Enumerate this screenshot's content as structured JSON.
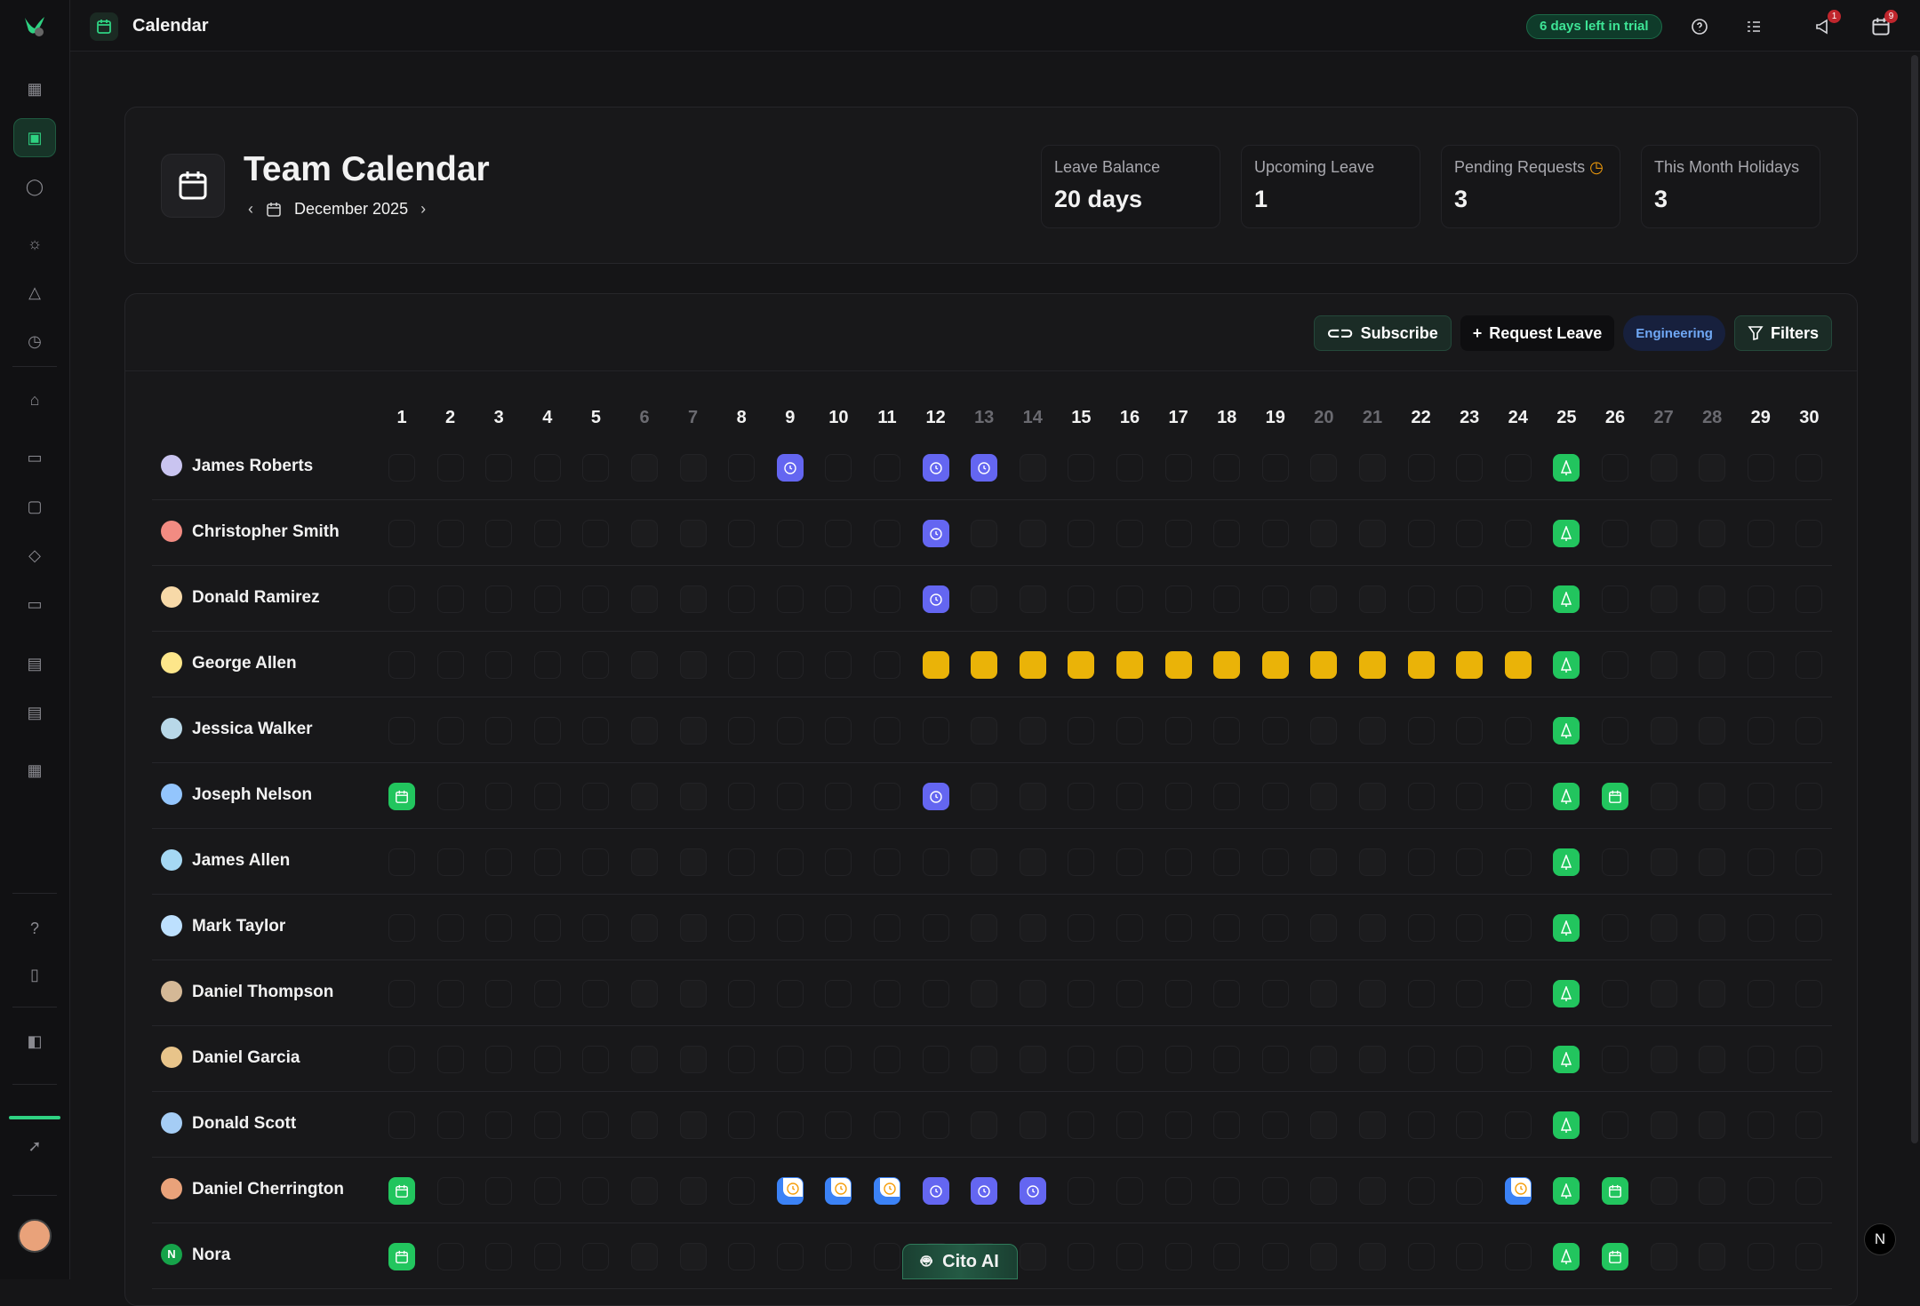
{
  "app": {
    "title": "Calendar",
    "trial": "6 days left in trial",
    "notifications": {
      "announcements": "1",
      "calendar": "9"
    }
  },
  "sidebar": {
    "items": [
      "dashboard-icon",
      "calendar-icon",
      "user-icon",
      "sun-icon",
      "alert-icon",
      "clock-icon",
      "home-icon",
      "briefcase-icon",
      "chat-icon",
      "graduation-icon",
      "monitor-icon",
      "document-icon",
      "receipt-icon",
      "apps-icon"
    ],
    "bottom": [
      "help-icon",
      "book-icon",
      "panel-icon",
      "rocket-icon"
    ],
    "active": "calendar-icon"
  },
  "header": {
    "title": "Team Calendar",
    "month": "December 2025",
    "stats": [
      {
        "label": "Leave Balance",
        "value": "20 days"
      },
      {
        "label": "Upcoming Leave",
        "value": "1"
      },
      {
        "label": "Pending Requests",
        "value": "3"
      },
      {
        "label": "This Month Holidays",
        "value": "3"
      }
    ]
  },
  "toolbar": {
    "subscribe": "Subscribe",
    "request": "Request Leave",
    "department": "Engineering",
    "filters": "Filters"
  },
  "calendar": {
    "days": 30,
    "weekend_days": [
      6,
      7,
      13,
      14,
      20,
      21,
      27,
      28
    ],
    "legend_colors": {
      "pending": "#6466f1",
      "leave": "#eab308",
      "holiday": "#22c55e",
      "event": "#22c55e",
      "half": "#3b82f6"
    },
    "employees": [
      {
        "name": "James Roberts",
        "avatar": "#c9c4f0",
        "cells": {
          "9": "pending",
          "12": "pending",
          "13": "pending",
          "25": "holiday"
        }
      },
      {
        "name": "Christopher Smith",
        "avatar": "#f28b82",
        "cells": {
          "12": "pending",
          "25": "holiday"
        }
      },
      {
        "name": "Donald Ramirez",
        "avatar": "#f7d9a8",
        "cells": {
          "12": "pending",
          "25": "holiday"
        }
      },
      {
        "name": "George Allen",
        "avatar": "#fde68a",
        "cells": {
          "12": "leave",
          "13": "leave",
          "14": "leave",
          "15": "leave",
          "16": "leave",
          "17": "leave",
          "18": "leave",
          "19": "leave",
          "20": "leave",
          "21": "leave",
          "22": "leave",
          "23": "leave",
          "24": "leave",
          "25": "holiday"
        }
      },
      {
        "name": "Jessica Walker",
        "avatar": "#b8d8e8",
        "cells": {
          "25": "holiday"
        }
      },
      {
        "name": "Joseph Nelson",
        "avatar": "#93c5fd",
        "cells": {
          "1": "event",
          "12": "pending",
          "25": "holiday",
          "26": "event"
        }
      },
      {
        "name": "James Allen",
        "avatar": "#a5d8f3",
        "cells": {
          "25": "holiday"
        }
      },
      {
        "name": "Mark Taylor",
        "avatar": "#bde0fe",
        "cells": {
          "25": "holiday"
        }
      },
      {
        "name": "Daniel Thompson",
        "avatar": "#d4b896",
        "cells": {
          "25": "holiday"
        }
      },
      {
        "name": "Daniel Garcia",
        "avatar": "#e8c48a",
        "cells": {
          "25": "holiday"
        }
      },
      {
        "name": "Donald Scott",
        "avatar": "#a5cdf5",
        "cells": {
          "25": "holiday"
        }
      },
      {
        "name": "Daniel Cherrington",
        "avatar": "#e9a27a",
        "cells": {
          "1": "event",
          "9": "half",
          "10": "half",
          "11": "half",
          "12": "pending",
          "13": "pending",
          "14": "pending",
          "24": "half",
          "25": "holiday",
          "26": "event"
        }
      },
      {
        "name": "Nora",
        "initial": "N",
        "avatar": "#16a34a",
        "cells": {
          "1": "event",
          "25": "holiday",
          "26": "event"
        }
      }
    ]
  },
  "assistant": {
    "label": "Cito AI"
  },
  "corner": {
    "label": "N"
  }
}
